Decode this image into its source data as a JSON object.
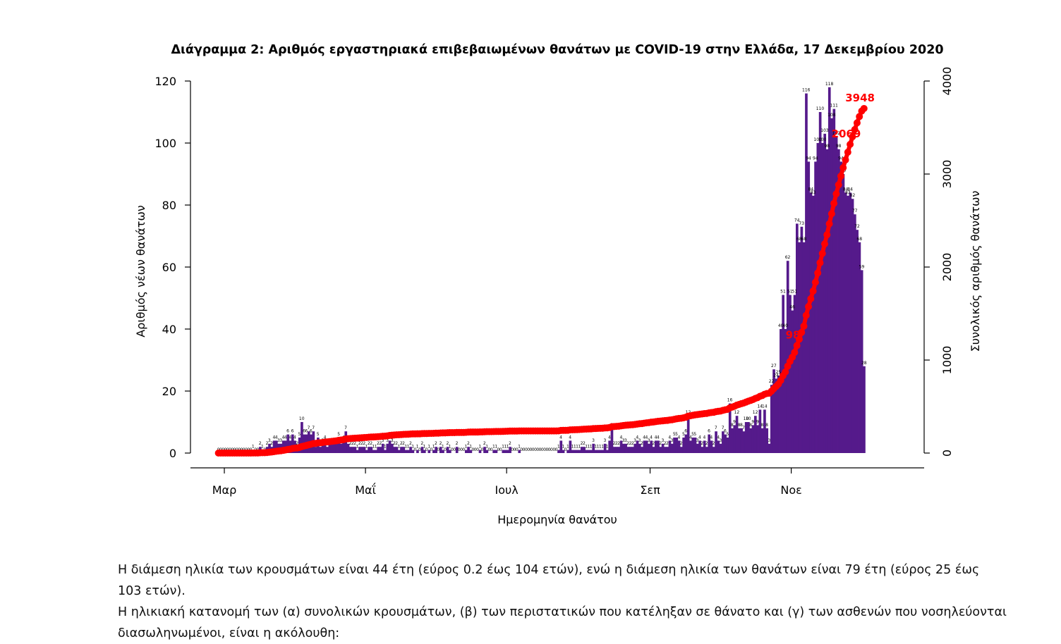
{
  "chart_data": {
    "type": "bar",
    "title": "Διάγραμμα 2: Αριθμός εργαστηριακά επιβεβαιωμένων θανάτων με COVID-19 στην Ελλάδα, 17 Δεκεμβρίου 2020",
    "xlabel": "Ημερομηνία θανάτου",
    "ylabel": "Αριθμός νέων θανάτων",
    "y2label": "Συνολικός αριθμός θανάτων",
    "ylim": [
      0,
      120
    ],
    "y2lim": [
      0,
      4000
    ],
    "yticks": [
      "0",
      "20",
      "40",
      "60",
      "80",
      "100",
      "120"
    ],
    "y2ticks": [
      "0",
      "1000",
      "2000",
      "3000",
      "4000"
    ],
    "xticks": [
      {
        "label": "Μαρ",
        "day": 0
      },
      {
        "label": "Μαΐ",
        "day": 61
      },
      {
        "label": "Ιουλ",
        "day": 122
      },
      {
        "label": "Σεπ",
        "day": 184
      },
      {
        "label": "Νοε",
        "day": 245
      }
    ],
    "x_start": "2020-03-01",
    "series": [
      {
        "name": "Νέοι θάνατοι",
        "color": "#551a8b",
        "values": [
          0,
          0,
          0,
          0,
          0,
          0,
          0,
          0,
          0,
          0,
          0,
          0,
          0,
          0,
          0,
          1,
          0,
          0,
          2,
          1,
          0,
          2,
          3,
          2,
          4,
          4,
          3,
          3,
          4,
          4,
          6,
          4,
          6,
          4,
          2,
          5,
          10,
          6,
          6,
          7,
          6,
          7,
          2,
          5,
          2,
          3,
          4,
          2,
          3,
          3,
          3,
          3,
          5,
          3,
          4,
          7,
          3,
          2,
          2,
          2,
          1,
          2,
          2,
          2,
          1,
          2,
          2,
          1,
          1,
          2,
          2,
          3,
          1,
          3,
          4,
          3,
          2,
          2,
          1,
          2,
          2,
          1,
          1,
          2,
          1,
          0,
          1,
          0,
          2,
          1,
          0,
          1,
          0,
          1,
          2,
          0,
          2,
          1,
          0,
          2,
          1,
          0,
          0,
          2,
          0,
          0,
          0,
          1,
          2,
          1,
          0,
          0,
          0,
          1,
          0,
          2,
          1,
          0,
          0,
          1,
          1,
          0,
          0,
          1,
          1,
          1,
          2,
          0,
          0,
          0,
          1,
          0,
          0,
          0,
          0,
          0,
          0,
          0,
          0,
          0,
          0,
          0,
          0,
          0,
          0,
          0,
          0,
          1,
          4,
          1,
          0,
          1,
          4,
          1,
          1,
          1,
          1,
          2,
          2,
          1,
          1,
          1,
          3,
          1,
          1,
          1,
          1,
          3,
          1,
          4,
          8,
          2,
          2,
          2,
          4,
          3,
          3,
          2,
          2,
          2,
          3,
          4,
          3,
          2,
          4,
          4,
          3,
          4,
          2,
          4,
          4,
          2,
          3,
          2,
          2,
          4,
          3,
          5,
          5,
          4,
          2,
          5,
          6,
          12,
          4,
          5,
          5,
          3,
          4,
          2,
          4,
          2,
          6,
          4,
          2,
          7,
          4,
          3,
          7,
          6,
          5,
          16,
          8,
          9,
          12,
          8,
          8,
          7,
          10,
          10,
          8,
          9,
          12,
          9,
          14,
          8,
          14,
          8,
          3,
          22,
          27,
          24,
          25,
          40,
          51,
          40,
          62,
          51,
          46,
          51,
          74,
          68,
          73,
          68,
          116,
          94,
          84,
          83,
          94,
          100,
          110,
          100,
          103,
          98,
          118,
          108,
          111,
          102,
          98,
          94,
          90,
          84,
          83,
          84,
          82,
          77,
          72,
          68,
          59,
          28
        ]
      },
      {
        "name": "Συνολικοί θάνατοι",
        "color": "#ff0000",
        "axis": "right"
      }
    ],
    "cumulative_labels": [
      {
        "day": 250,
        "text": "98"
      },
      {
        "day": 273,
        "text": "2069"
      },
      {
        "day": 294,
        "text": "3948"
      }
    ]
  },
  "caption": {
    "line1": "Η διάμεση ηλικία των κρουσμάτων είναι 44 έτη (εύρος 0.2 έως 104 ετών), ενώ η διάμεση ηλικία των θανάτων είναι 79 έτη (εύρος 25 έως 103 ετών).",
    "line2": "Η ηλικιακή κατανομή των (α) συνολικών κρουσμάτων, (β) των περιστατικών που κατέληξαν σε θάνατο και (γ) των ασθενών που νοσηλεύονται",
    "line3": "διασωληνωμένοι, είναι η ακόλουθη:"
  }
}
